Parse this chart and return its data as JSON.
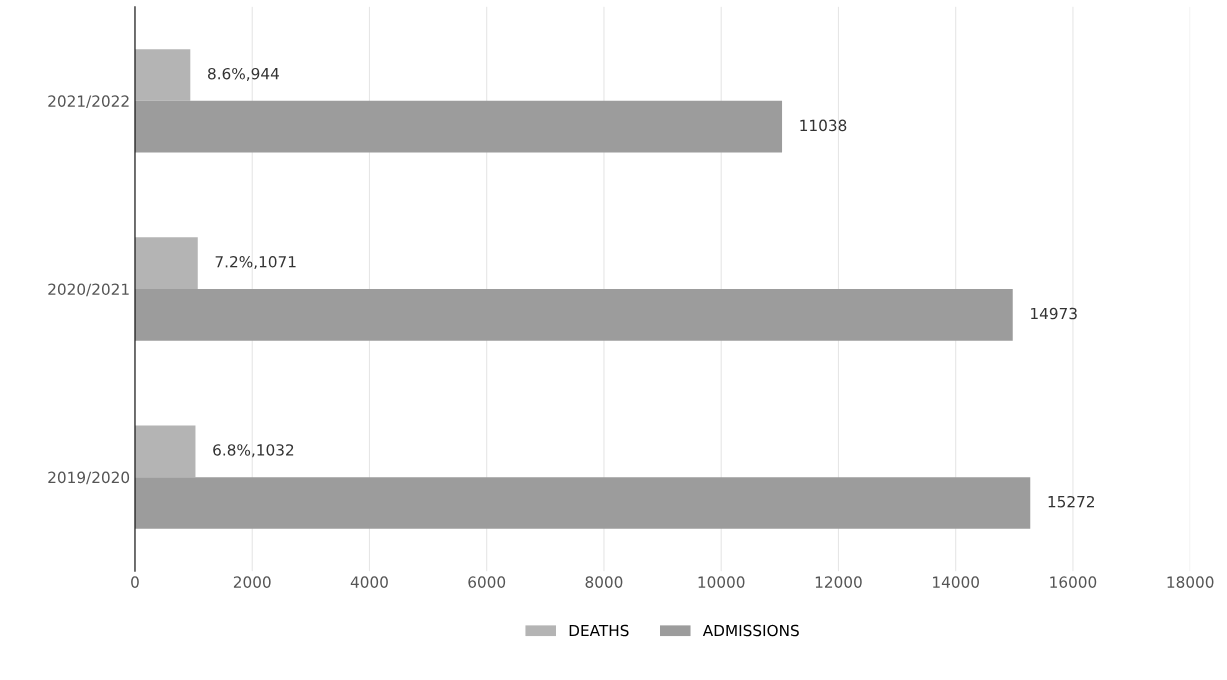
{
  "chart_data": {
    "type": "bar",
    "orientation": "horizontal",
    "categories": [
      "2021/2022",
      "2020/2021",
      "2019/2020"
    ],
    "series": [
      {
        "name": "DEATHS",
        "color": "#b4b4b4",
        "values": [
          944,
          1071,
          1032
        ],
        "value_labels": [
          "8.6%,944",
          "7.2%,1071",
          "6.8%,1032"
        ]
      },
      {
        "name": "ADMISSIONS",
        "color": "#9c9c9c",
        "values": [
          11038,
          14973,
          15272
        ],
        "value_labels": [
          "11038",
          "14973",
          "15272"
        ]
      }
    ],
    "xlim": [
      0,
      18000
    ],
    "xticks": [
      0,
      2000,
      4000,
      6000,
      8000,
      10000,
      12000,
      14000,
      16000,
      18000
    ],
    "grid": "x",
    "legend": "bottom"
  }
}
